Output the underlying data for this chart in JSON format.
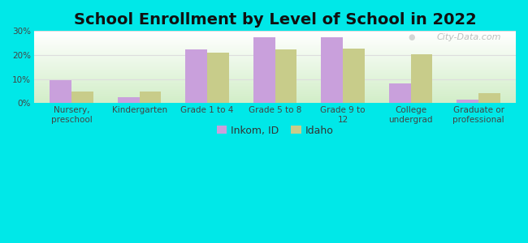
{
  "title": "School Enrollment by Level of School in 2022",
  "categories": [
    "Nursery,\npreschool",
    "Kindergarten",
    "Grade 1 to 4",
    "Grade 5 to 8",
    "Grade 9 to\n12",
    "College\nundergrad",
    "Graduate or\nprofessional"
  ],
  "inkom_values": [
    9.7,
    2.3,
    22.5,
    27.5,
    27.5,
    8.2,
    1.5
  ],
  "idaho_values": [
    4.8,
    4.8,
    21.0,
    22.5,
    22.8,
    20.2,
    4.0
  ],
  "inkom_color": "#c9a0dc",
  "idaho_color": "#c8cc8a",
  "background_color": "#00e8e8",
  "ylim": [
    0,
    30
  ],
  "yticks": [
    0,
    10,
    20,
    30
  ],
  "legend_labels": [
    "Inkom, ID",
    "Idaho"
  ],
  "title_fontsize": 14,
  "tick_fontsize": 7.5,
  "legend_fontsize": 9,
  "bar_width": 0.32,
  "watermark": "City-Data.com",
  "grid_color": "#cccccc",
  "bg_top_color": "#e8f5e0",
  "bg_bottom_color": "#c8e8c0"
}
